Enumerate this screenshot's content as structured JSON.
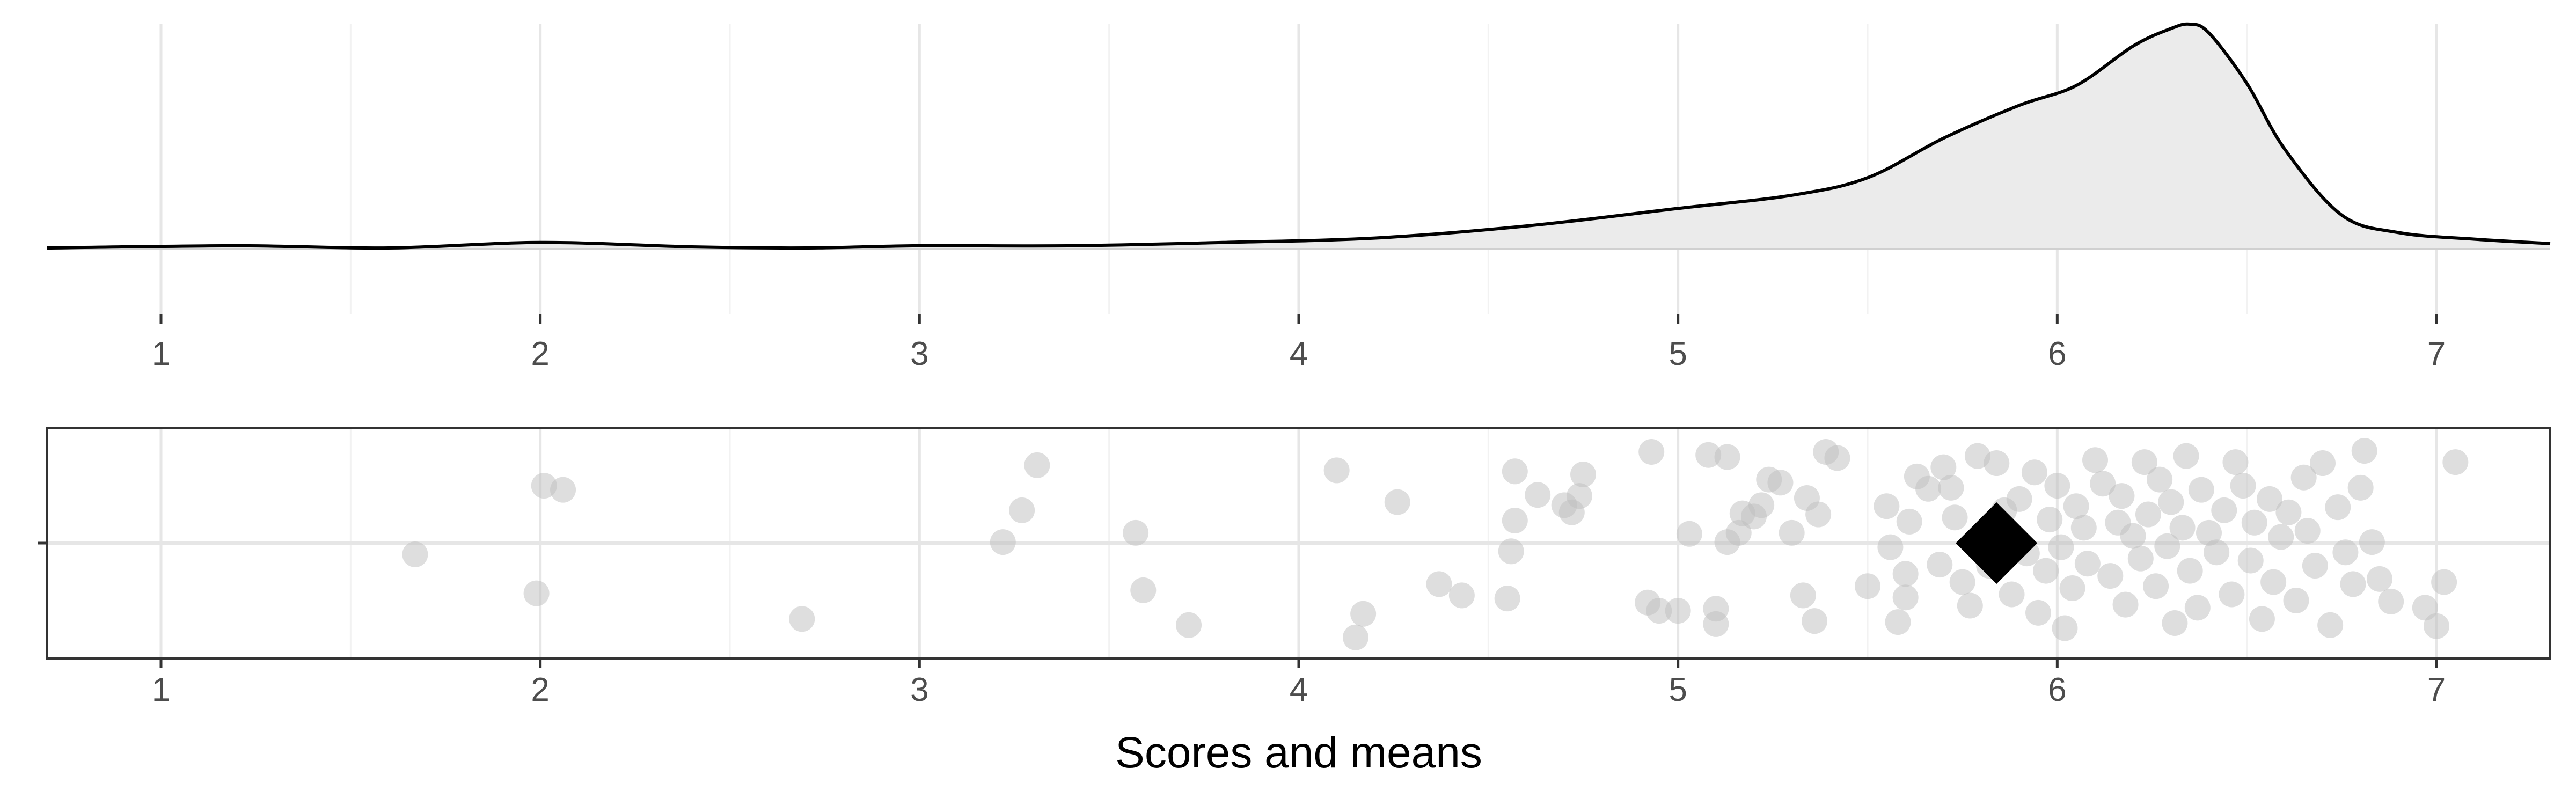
{
  "chart_data": [
    {
      "type": "area",
      "panel": "density",
      "xlim": [
        0.7,
        7.3
      ],
      "x_ticks": [
        1,
        2,
        3,
        4,
        5,
        6,
        7
      ],
      "grid": true,
      "fill_color": "#ebebeb",
      "line_color": "#000000",
      "x": [
        0.7,
        1.2,
        1.6,
        2.0,
        2.4,
        2.7,
        3.0,
        3.4,
        3.8,
        4.2,
        4.6,
        5.0,
        5.3,
        5.5,
        5.7,
        5.9,
        6.05,
        6.2,
        6.3,
        6.35,
        6.4,
        6.5,
        6.6,
        6.75,
        6.9,
        7.1,
        7.3
      ],
      "density": [
        0.0,
        0.01,
        0.0,
        0.025,
        0.005,
        0.0,
        0.01,
        0.01,
        0.025,
        0.045,
        0.1,
        0.18,
        0.24,
        0.32,
        0.5,
        0.65,
        0.74,
        0.92,
        1.0,
        1.02,
        0.98,
        0.75,
        0.45,
        0.15,
        0.07,
        0.04,
        0.02
      ]
    },
    {
      "type": "scatter",
      "panel": "jitter",
      "xlim": [
        0.7,
        7.3
      ],
      "x_ticks": [
        1,
        2,
        3,
        4,
        5,
        6,
        7
      ],
      "xlabel": "Scores and means",
      "grid": true,
      "point_color": "#bdbdbd",
      "mean_marker": {
        "shape": "diamond",
        "x": 5.84,
        "y": 0,
        "color": "#000000"
      },
      "points": [
        [
          1.67,
          -0.11
        ],
        [
          2.01,
          0.56
        ],
        [
          2.06,
          0.52
        ],
        [
          1.99,
          -0.49
        ],
        [
          2.69,
          -0.74
        ],
        [
          3.22,
          0.01
        ],
        [
          3.27,
          0.32
        ],
        [
          3.31,
          0.76
        ],
        [
          3.57,
          0.1
        ],
        [
          3.59,
          -0.46
        ],
        [
          3.71,
          -0.8
        ],
        [
          4.1,
          0.71
        ],
        [
          4.15,
          -0.92
        ],
        [
          4.17,
          -0.69
        ],
        [
          4.26,
          0.4
        ],
        [
          4.37,
          -0.4
        ],
        [
          4.43,
          -0.51
        ],
        [
          4.55,
          -0.54
        ],
        [
          4.56,
          -0.08
        ],
        [
          4.57,
          0.22
        ],
        [
          4.57,
          0.7
        ],
        [
          4.63,
          0.47
        ],
        [
          4.7,
          0.37
        ],
        [
          4.72,
          0.3
        ],
        [
          4.74,
          0.46
        ],
        [
          4.75,
          0.67
        ],
        [
          4.92,
          -0.58
        ],
        [
          4.93,
          0.89
        ],
        [
          4.95,
          -0.66
        ],
        [
          5.0,
          -0.66
        ],
        [
          5.03,
          0.09
        ],
        [
          5.08,
          0.86
        ],
        [
          5.1,
          -0.64
        ],
        [
          5.1,
          -0.79
        ],
        [
          5.13,
          0.84
        ],
        [
          5.13,
          0.01
        ],
        [
          5.16,
          0.1
        ],
        [
          5.17,
          0.29
        ],
        [
          5.2,
          0.26
        ],
        [
          5.22,
          0.37
        ],
        [
          5.24,
          0.62
        ],
        [
          5.27,
          0.59
        ],
        [
          5.3,
          0.1
        ],
        [
          5.33,
          -0.51
        ],
        [
          5.34,
          0.44
        ],
        [
          5.36,
          -0.76
        ],
        [
          5.37,
          0.28
        ],
        [
          5.39,
          0.89
        ],
        [
          5.42,
          0.83
        ],
        [
          5.5,
          -0.42
        ],
        [
          5.55,
          0.36
        ],
        [
          5.56,
          -0.04
        ],
        [
          5.58,
          -0.77
        ],
        [
          5.6,
          -0.53
        ],
        [
          5.6,
          -0.3
        ],
        [
          5.61,
          0.21
        ],
        [
          5.63,
          0.65
        ],
        [
          5.66,
          0.53
        ],
        [
          5.69,
          -0.21
        ],
        [
          5.7,
          0.74
        ],
        [
          5.72,
          0.54
        ],
        [
          5.73,
          0.25
        ],
        [
          5.75,
          -0.38
        ],
        [
          5.77,
          -0.61
        ],
        [
          5.79,
          0.85
        ],
        [
          5.8,
          0.05
        ],
        [
          5.82,
          -0.22
        ],
        [
          5.84,
          0.78
        ],
        [
          5.86,
          0.32
        ],
        [
          5.88,
          -0.5
        ],
        [
          5.9,
          0.43
        ],
        [
          5.92,
          -0.1
        ],
        [
          5.94,
          0.69
        ],
        [
          5.95,
          -0.68
        ],
        [
          5.97,
          -0.27
        ],
        [
          5.98,
          0.23
        ],
        [
          6.0,
          0.56
        ],
        [
          6.01,
          -0.04
        ],
        [
          6.02,
          -0.83
        ],
        [
          6.04,
          -0.44
        ],
        [
          6.05,
          0.36
        ],
        [
          6.07,
          0.15
        ],
        [
          6.08,
          -0.2
        ],
        [
          6.1,
          0.81
        ],
        [
          6.12,
          0.58
        ],
        [
          6.14,
          -0.32
        ],
        [
          6.16,
          0.2
        ],
        [
          6.17,
          0.46
        ],
        [
          6.18,
          -0.6
        ],
        [
          6.2,
          0.07
        ],
        [
          6.22,
          -0.15
        ],
        [
          6.23,
          0.79
        ],
        [
          6.24,
          0.28
        ],
        [
          6.26,
          -0.42
        ],
        [
          6.27,
          0.62
        ],
        [
          6.29,
          -0.03
        ],
        [
          6.3,
          0.4
        ],
        [
          6.31,
          -0.78
        ],
        [
          6.33,
          0.15
        ],
        [
          6.34,
          0.85
        ],
        [
          6.35,
          -0.27
        ],
        [
          6.37,
          -0.63
        ],
        [
          6.38,
          0.52
        ],
        [
          6.4,
          0.1
        ],
        [
          6.42,
          -0.09
        ],
        [
          6.44,
          0.32
        ],
        [
          6.46,
          -0.5
        ],
        [
          6.47,
          0.79
        ],
        [
          6.49,
          0.56
        ],
        [
          6.51,
          -0.17
        ],
        [
          6.52,
          0.2
        ],
        [
          6.54,
          -0.74
        ],
        [
          6.56,
          0.43
        ],
        [
          6.57,
          -0.38
        ],
        [
          6.59,
          0.06
        ],
        [
          6.61,
          0.3
        ],
        [
          6.63,
          -0.56
        ],
        [
          6.65,
          0.64
        ],
        [
          6.66,
          0.12
        ],
        [
          6.68,
          -0.22
        ],
        [
          6.7,
          0.78
        ],
        [
          6.72,
          -0.8
        ],
        [
          6.74,
          0.35
        ],
        [
          6.76,
          -0.09
        ],
        [
          6.78,
          -0.4
        ],
        [
          6.8,
          0.54
        ],
        [
          6.81,
          0.9
        ],
        [
          6.83,
          0.01
        ],
        [
          6.85,
          -0.35
        ],
        [
          6.88,
          -0.57
        ],
        [
          6.97,
          -0.63
        ],
        [
          7.0,
          -0.81
        ],
        [
          7.02,
          -0.38
        ],
        [
          7.05,
          0.79
        ]
      ]
    }
  ]
}
